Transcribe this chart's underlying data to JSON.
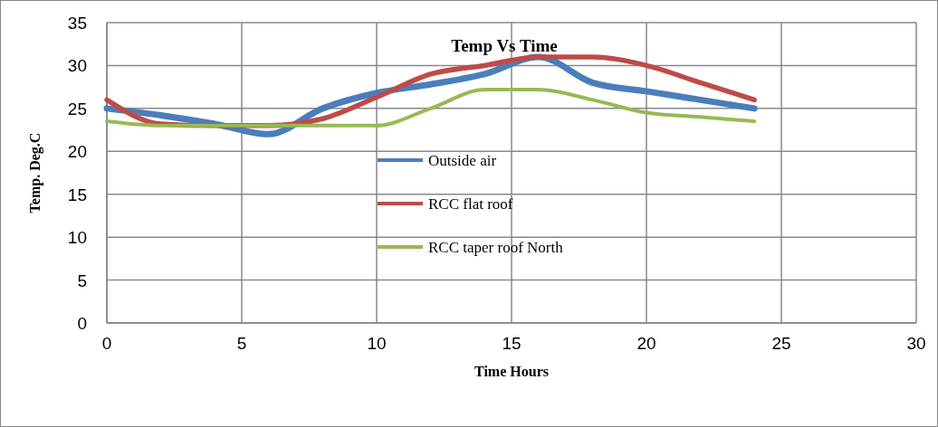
{
  "chart_data": {
    "type": "line",
    "title": "Temp Vs Time",
    "xlabel": "Time Hours",
    "ylabel": "Temp. Deg.C",
    "x": [
      0,
      2,
      4,
      6,
      8,
      10,
      12,
      14,
      16,
      18,
      20,
      22,
      24
    ],
    "series": [
      {
        "name": "Outside air",
        "color": "#4a7ebb",
        "values": [
          25,
          24.2,
          23.2,
          22,
          25,
          26.8,
          27.8,
          29,
          31,
          28,
          27,
          26,
          25
        ]
      },
      {
        "name": "RCC flat roof",
        "color": "#be4b48",
        "values": [
          26,
          23.2,
          23,
          23,
          23.8,
          26.3,
          29,
          30,
          31,
          31,
          30,
          28,
          26
        ]
      },
      {
        "name": "RCC taper roof North",
        "color": "#98b954",
        "values": [
          23.5,
          23,
          23,
          23,
          23,
          23,
          25,
          27.2,
          27.2,
          26,
          24.5,
          24,
          23.5
        ]
      }
    ],
    "xlim": [
      0,
      30
    ],
    "xticks": [
      0,
      5,
      10,
      15,
      20,
      25,
      30
    ],
    "ylim": [
      0,
      35
    ],
    "yticks": [
      0,
      5,
      10,
      15,
      20,
      25,
      30,
      35
    ],
    "grid": true,
    "legend": "center",
    "marker": "none",
    "line_style": "solid"
  }
}
